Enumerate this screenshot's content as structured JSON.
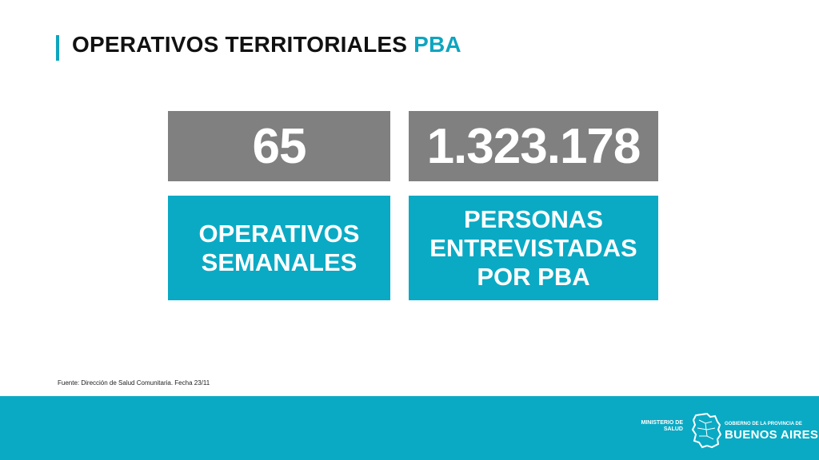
{
  "header": {
    "title_main": "OPERATIVOS TERRITORIALES",
    "title_accent": "PBA"
  },
  "stats": [
    {
      "value": "65",
      "label": "OPERATIVOS\nSEMANALES"
    },
    {
      "value": "1.323.178",
      "label": "PERSONAS\nENTREVISTADAS\nPOR PBA"
    }
  ],
  "source": "Fuente: Dirección de Salud Comunitaria. Fecha  23/11",
  "footer": {
    "ministerio": "MINISTERIO DE\nSALUD",
    "gobierno_small": "GOBIERNO DE LA PROVINCIA DE",
    "gobierno_big": "BUENOS AIRES"
  },
  "colors": {
    "accent": "#0ea5bf",
    "label_box": "#0aaac4",
    "number_box": "#808080"
  }
}
